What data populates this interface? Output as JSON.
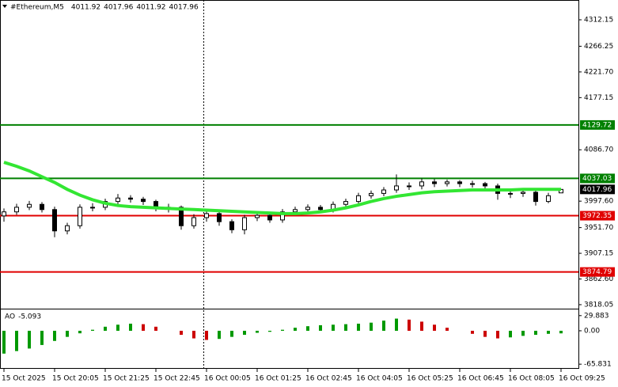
{
  "chart_data": [
    {
      "type": "candlestick",
      "title": "#Ethereum,M5",
      "header_values": [
        4011.92,
        4017.96,
        4011.92,
        4017.96
      ],
      "categories": [
        "15 Oct 2025",
        null,
        null,
        null,
        "15 Oct 20:05",
        null,
        null,
        null,
        "15 Oct 21:25",
        null,
        null,
        null,
        "15 Oct 22:45",
        null,
        null,
        null,
        "16 Oct 00:05",
        null,
        null,
        null,
        "16 Oct 01:25",
        null,
        null,
        null,
        "16 Oct 02:45",
        null,
        null,
        null,
        "16 Oct 04:05",
        null,
        null,
        null,
        "16 Oct 05:25",
        null,
        null,
        null,
        "16 Oct 06:45",
        null,
        null,
        null,
        "16 Oct 08:05",
        null,
        null,
        null,
        "16 Oct 09:25"
      ],
      "open": [
        3972,
        3979,
        3987,
        3992,
        3983,
        3946,
        3955,
        3987,
        3987,
        3997,
        4003,
        4001,
        3997,
        3987,
        3987,
        3955,
        3969,
        3976,
        3962,
        3948,
        3969,
        3973,
        3965,
        3979,
        3983,
        3987,
        3983,
        3992,
        3997,
        4007,
        4011,
        4017,
        4024,
        4024,
        4031,
        4028,
        4031,
        4028,
        4028,
        4024,
        4011,
        4011,
        4013,
        3997,
        4011.92
      ],
      "high": [
        3985,
        3993,
        3998,
        3996,
        3988,
        3960,
        3992,
        3994,
        4002,
        4010,
        4008,
        4005,
        4000,
        3993,
        3990,
        3975,
        3982,
        3980,
        3966,
        3974,
        3979,
        3978,
        3984,
        3988,
        3992,
        3991,
        3997,
        4002,
        4012,
        4016,
        4022,
        4044,
        4030,
        4037,
        4036,
        4035,
        4034,
        4033,
        4031,
        4028,
        4017,
        4019,
        4018,
        4012,
        4017.96
      ],
      "low": [
        3962,
        3974,
        3982,
        3978,
        3935,
        3940,
        3950,
        3980,
        3982,
        3991,
        3995,
        3991,
        3980,
        3978,
        3948,
        3950,
        3962,
        3955,
        3942,
        3940,
        3963,
        3960,
        3960,
        3974,
        3978,
        3977,
        3978,
        3988,
        3992,
        4002,
        4006,
        4012,
        4017,
        4018,
        4022,
        4023,
        4022,
        4021,
        4018,
        4000,
        4003,
        4005,
        3990,
        3994,
        4011.92
      ],
      "close": [
        3979,
        3987,
        3992,
        3983,
        3946,
        3955,
        3987,
        3987,
        3997,
        4003,
        4001,
        3997,
        3987,
        3987,
        3955,
        3969,
        3976,
        3962,
        3948,
        3969,
        3973,
        3965,
        3979,
        3983,
        3987,
        3983,
        3992,
        3997,
        4007,
        4011,
        4017,
        4024,
        4024,
        4031,
        4028,
        4031,
        4028,
        4028,
        4024,
        4011,
        4011,
        4013,
        3997,
        4007,
        4017.96
      ],
      "color": "#000000",
      "ma": {
        "color": "#33e633",
        "values": [
          4065,
          4058,
          4050,
          4040,
          4030,
          4018,
          4008,
          4000,
          3994,
          3990,
          3988,
          3987,
          3986,
          3985,
          3984,
          3983,
          3982,
          3981,
          3980,
          3979,
          3978,
          3977,
          3976,
          3976,
          3977,
          3979,
          3982,
          3986,
          3991,
          3997,
          4002,
          4006,
          4009,
          4012,
          4014,
          4015,
          4016,
          4017,
          4017,
          4017,
          4017,
          4018,
          4018,
          4018,
          4018
        ]
      },
      "levels": [
        {
          "value": 4129.72,
          "color": "#008000"
        },
        {
          "value": 4037.03,
          "color": "#008000"
        },
        {
          "value": 3972.35,
          "color": "#e00000"
        },
        {
          "value": 3874.79,
          "color": "#e00000"
        }
      ],
      "last_price": {
        "value": 4017.96,
        "color": "#000000"
      },
      "ylim": [
        3813.9,
        4343.7
      ],
      "yticks": [
        4312.15,
        4266.25,
        {
          "value": 4221.7,
          "label": "4221.70"
        },
        4177.15,
        {
          "value": 4086.7,
          "label": "4086.70"
        },
        {
          "value": 3997.6,
          "label": "3997.60"
        },
        {
          "value": 3951.7,
          "label": "3951.70"
        },
        3907.15,
        {
          "value": 3862.6,
          "label": "3862.60"
        },
        3818.05
      ]
    },
    {
      "type": "histogram-ao",
      "title": "AO",
      "current": -5.093,
      "values": [
        -45,
        -40,
        -35,
        -28,
        -20,
        -12,
        -5,
        2,
        8,
        12,
        14,
        13,
        8,
        0,
        -8,
        -15,
        -18,
        -16,
        -12,
        -8,
        -4,
        -2,
        2,
        6,
        9,
        11,
        12,
        13,
        14,
        16,
        20,
        24,
        22,
        18,
        12,
        6,
        0,
        -6,
        -12,
        -15,
        -13,
        -10,
        -8,
        -6,
        -5.093
      ],
      "up_color": "#009900",
      "down_color": "#cc0000",
      "ylim": [
        -73.4,
        40.5
      ],
      "yticks": [
        29.883,
        {
          "value": 0,
          "label": "0.00"
        },
        -65.831
      ]
    }
  ]
}
